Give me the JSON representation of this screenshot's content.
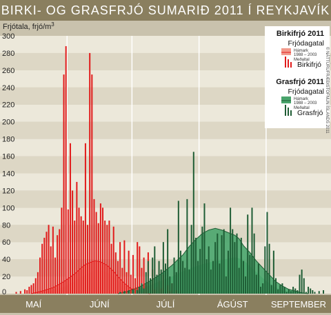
{
  "title": "BIRKI- OG GRASFRJÓ SUMARIÐ 2011 Í REYKJAVÍK",
  "credit": "© NÁTTÚRUFRÆÐISTOFNUN ÍSLANDS 2011",
  "chart_data": {
    "type": "bar",
    "ylabel": "Frjótala, frjó/m",
    "ylabel_sup": "3",
    "ylim": [
      0,
      300
    ],
    "yticks": [
      0,
      20,
      40,
      60,
      80,
      100,
      120,
      140,
      160,
      180,
      200,
      220,
      240,
      260,
      280,
      300
    ],
    "x_start_day": 1,
    "x_end_day": 153,
    "months": [
      {
        "label": "MAÍ",
        "days": 31
      },
      {
        "label": "JÚNÍ",
        "days": 30
      },
      {
        "label": "JÚLÍ",
        "days": 31
      },
      {
        "label": "ÁGÚST",
        "days": 31
      },
      {
        "label": "SEPTEMBER",
        "days": 30
      }
    ],
    "grid": true,
    "legend": {
      "position": "top-right",
      "groups": [
        {
          "title": "Birkifrjó 2011",
          "subtitle": "Frjódagatal",
          "max_label": "Hámark",
          "years": "1988 – 2003",
          "mean_label": "Meðaltal",
          "series_label": "Birkifrjó",
          "color": "#e11a1a",
          "band_color": "#f29a8c"
        },
        {
          "title": "Grasfrjó 2011",
          "subtitle": "Frjódagatal",
          "max_label": "Hámark",
          "years": "1988 – 2003",
          "mean_label": "Meðaltal",
          "series_label": "Grasfrjó",
          "color": "#1e5c34",
          "band_color": "#49a56c"
        }
      ]
    },
    "series": [
      {
        "name": "Birkifrjó",
        "color": "#e11a1a",
        "points": [
          [
            8,
            2
          ],
          [
            10,
            3
          ],
          [
            12,
            5
          ],
          [
            13,
            4
          ],
          [
            14,
            8
          ],
          [
            15,
            10
          ],
          [
            16,
            12
          ],
          [
            17,
            18
          ],
          [
            18,
            25
          ],
          [
            19,
            42
          ],
          [
            20,
            58
          ],
          [
            21,
            65
          ],
          [
            22,
            72
          ],
          [
            23,
            80
          ],
          [
            24,
            55
          ],
          [
            25,
            78
          ],
          [
            26,
            42
          ],
          [
            27,
            68
          ],
          [
            28,
            75
          ],
          [
            29,
            100
          ],
          [
            30,
            255
          ],
          [
            31,
            288
          ],
          [
            32,
            98
          ],
          [
            33,
            175
          ],
          [
            34,
            120
          ],
          [
            35,
            85
          ],
          [
            36,
            130
          ],
          [
            37,
            100
          ],
          [
            38,
            90
          ],
          [
            39,
            85
          ],
          [
            40,
            175
          ],
          [
            41,
            80
          ],
          [
            42,
            280
          ],
          [
            43,
            255
          ],
          [
            44,
            110
          ],
          [
            45,
            95
          ],
          [
            46,
            82
          ],
          [
            47,
            105
          ],
          [
            48,
            100
          ],
          [
            49,
            85
          ],
          [
            50,
            80
          ],
          [
            51,
            85
          ],
          [
            52,
            58
          ],
          [
            53,
            78
          ],
          [
            54,
            48
          ],
          [
            55,
            38
          ],
          [
            56,
            60
          ],
          [
            57,
            30
          ],
          [
            58,
            62
          ],
          [
            59,
            25
          ],
          [
            60,
            50
          ],
          [
            61,
            22
          ],
          [
            62,
            45
          ],
          [
            63,
            18
          ],
          [
            64,
            60
          ],
          [
            65,
            55
          ],
          [
            66,
            30
          ],
          [
            67,
            42
          ],
          [
            68,
            10
          ],
          [
            69,
            48
          ],
          [
            70,
            12
          ],
          [
            71,
            28
          ],
          [
            72,
            5
          ],
          [
            73,
            8
          ],
          [
            74,
            15
          ],
          [
            75,
            6
          ],
          [
            76,
            22
          ],
          [
            77,
            4
          ],
          [
            78,
            10
          ],
          [
            79,
            3
          ],
          [
            80,
            12
          ],
          [
            82,
            4
          ],
          [
            84,
            3
          ]
        ]
      },
      {
        "name": "Grasfrjó",
        "color": "#1e5c34",
        "points": [
          [
            56,
            2
          ],
          [
            58,
            3
          ],
          [
            60,
            4
          ],
          [
            62,
            5
          ],
          [
            64,
            4
          ],
          [
            65,
            8
          ],
          [
            66,
            12
          ],
          [
            67,
            6
          ],
          [
            68,
            25
          ],
          [
            69,
            38
          ],
          [
            70,
            18
          ],
          [
            71,
            42
          ],
          [
            72,
            55
          ],
          [
            73,
            22
          ],
          [
            74,
            38
          ],
          [
            75,
            28
          ],
          [
            76,
            60
          ],
          [
            77,
            35
          ],
          [
            78,
            75
          ],
          [
            79,
            20
          ],
          [
            80,
            12
          ],
          [
            81,
            42
          ],
          [
            82,
            25
          ],
          [
            83,
            108
          ],
          [
            84,
            50
          ],
          [
            85,
            38
          ],
          [
            86,
            30
          ],
          [
            87,
            110
          ],
          [
            88,
            28
          ],
          [
            89,
            80
          ],
          [
            90,
            165
          ],
          [
            91,
            65
          ],
          [
            92,
            38
          ],
          [
            93,
            52
          ],
          [
            94,
            78
          ],
          [
            95,
            105
          ],
          [
            96,
            40
          ],
          [
            97,
            55
          ],
          [
            98,
            28
          ],
          [
            99,
            38
          ],
          [
            100,
            60
          ],
          [
            101,
            70
          ],
          [
            102,
            35
          ],
          [
            103,
            68
          ],
          [
            104,
            75
          ],
          [
            105,
            20
          ],
          [
            106,
            50
          ],
          [
            107,
            100
          ],
          [
            108,
            75
          ],
          [
            109,
            60
          ],
          [
            110,
            70
          ],
          [
            111,
            30
          ],
          [
            112,
            65
          ],
          [
            113,
            38
          ],
          [
            114,
            20
          ],
          [
            115,
            92
          ],
          [
            116,
            45
          ],
          [
            117,
            100
          ],
          [
            118,
            70
          ],
          [
            119,
            22
          ],
          [
            120,
            35
          ],
          [
            121,
            8
          ],
          [
            122,
            12
          ],
          [
            123,
            55
          ],
          [
            124,
            95
          ],
          [
            125,
            58
          ],
          [
            126,
            10
          ],
          [
            127,
            50
          ],
          [
            128,
            18
          ],
          [
            129,
            5
          ],
          [
            130,
            10
          ],
          [
            131,
            12
          ],
          [
            132,
            8
          ],
          [
            133,
            2
          ],
          [
            134,
            5
          ],
          [
            135,
            3
          ],
          [
            136,
            8
          ],
          [
            137,
            6
          ],
          [
            138,
            4
          ],
          [
            139,
            22
          ],
          [
            140,
            28
          ],
          [
            141,
            18
          ],
          [
            142,
            2
          ],
          [
            143,
            8
          ],
          [
            144,
            6
          ],
          [
            145,
            4
          ],
          [
            146,
            2
          ],
          [
            148,
            3
          ],
          [
            150,
            4
          ]
        ]
      },
      {
        "name": "Hámark",
        "type": "area-band",
        "color": "#f29a8c",
        "points": [
          [
            15,
            0
          ],
          [
            20,
            2
          ],
          [
            25,
            4
          ],
          [
            30,
            8
          ],
          [
            35,
            14
          ],
          [
            38,
            20
          ],
          [
            40,
            22
          ],
          [
            42,
            24
          ],
          [
            44,
            27
          ],
          [
            45,
            28
          ],
          [
            47,
            27
          ],
          [
            50,
            25
          ],
          [
            53,
            20
          ],
          [
            55,
            15
          ],
          [
            58,
            10
          ],
          [
            61,
            6
          ],
          [
            64,
            3
          ],
          [
            67,
            2
          ],
          [
            70,
            1
          ],
          [
            73,
            0
          ]
        ]
      },
      {
        "name": "Meðaltal",
        "type": "line",
        "color": "#e11a1a",
        "points": [
          [
            15,
            0
          ],
          [
            20,
            3
          ],
          [
            25,
            7
          ],
          [
            30,
            14
          ],
          [
            35,
            23
          ],
          [
            38,
            30
          ],
          [
            40,
            34
          ],
          [
            42,
            36
          ],
          [
            44,
            38
          ],
          [
            45,
            38
          ],
          [
            47,
            37
          ],
          [
            50,
            33
          ],
          [
            53,
            26
          ],
          [
            55,
            20
          ],
          [
            58,
            12
          ],
          [
            61,
            6
          ],
          [
            64,
            3
          ],
          [
            67,
            1
          ],
          [
            70,
            0
          ]
        ]
      },
      {
        "name": "Hámark",
        "type": "area-band",
        "color": "#49a56c",
        "points": [
          [
            55,
            0
          ],
          [
            60,
            2
          ],
          [
            65,
            5
          ],
          [
            70,
            10
          ],
          [
            75,
            15
          ],
          [
            80,
            20
          ],
          [
            85,
            26
          ],
          [
            90,
            31
          ],
          [
            95,
            35
          ],
          [
            100,
            38
          ],
          [
            105,
            40
          ],
          [
            108,
            42
          ],
          [
            110,
            42
          ],
          [
            113,
            39
          ],
          [
            116,
            32
          ],
          [
            119,
            25
          ],
          [
            122,
            18
          ],
          [
            125,
            12
          ],
          [
            128,
            7
          ],
          [
            131,
            4
          ],
          [
            134,
            2
          ],
          [
            137,
            1
          ],
          [
            140,
            0
          ]
        ]
      },
      {
        "name": "Meðaltal",
        "type": "line",
        "color": "#1e5c34",
        "points": [
          [
            55,
            0
          ],
          [
            60,
            3
          ],
          [
            65,
            8
          ],
          [
            70,
            15
          ],
          [
            75,
            23
          ],
          [
            80,
            33
          ],
          [
            85,
            45
          ],
          [
            88,
            55
          ],
          [
            91,
            63
          ],
          [
            94,
            70
          ],
          [
            97,
            74
          ],
          [
            100,
            76
          ],
          [
            103,
            74
          ],
          [
            106,
            71
          ],
          [
            109,
            68
          ],
          [
            111,
            64
          ],
          [
            113,
            56
          ],
          [
            116,
            48
          ],
          [
            119,
            38
          ],
          [
            122,
            30
          ],
          [
            125,
            22
          ],
          [
            128,
            14
          ],
          [
            131,
            9
          ],
          [
            134,
            5
          ],
          [
            137,
            3
          ],
          [
            140,
            1
          ],
          [
            143,
            0
          ]
        ]
      }
    ]
  }
}
